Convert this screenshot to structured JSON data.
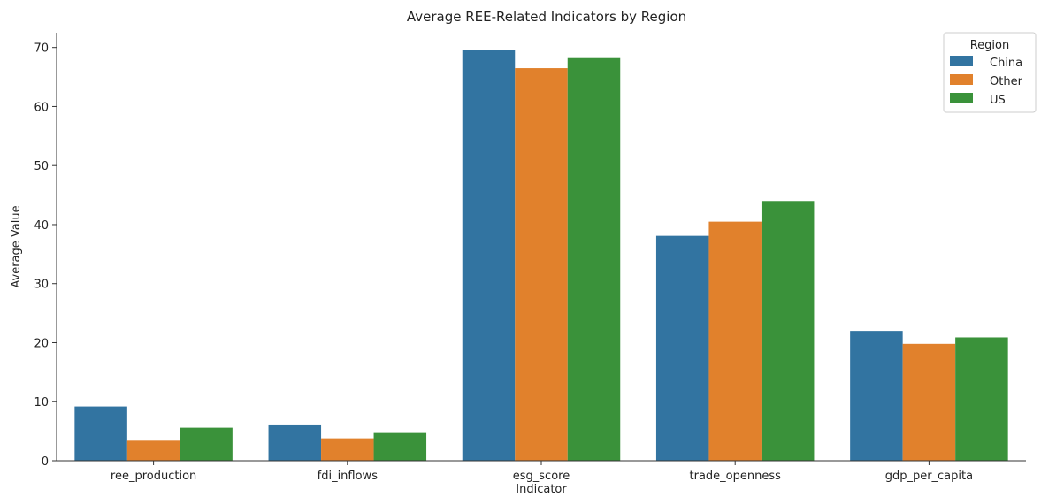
{
  "chart_data": {
    "type": "bar",
    "title": "Average REE-Related Indicators by Region",
    "xlabel": "Indicator",
    "ylabel": "Average Value",
    "categories": [
      "ree_production",
      "fdi_inflows",
      "esg_score",
      "trade_openness",
      "gdp_per_capita"
    ],
    "series": [
      {
        "name": "China",
        "color": "#3274a1",
        "values": [
          9.2,
          6.0,
          69.6,
          38.1,
          22.0
        ]
      },
      {
        "name": "Other",
        "color": "#e1812c",
        "values": [
          3.4,
          3.8,
          66.5,
          40.5,
          19.8
        ]
      },
      {
        "name": "US",
        "color": "#3a923a",
        "values": [
          5.6,
          4.7,
          68.2,
          44.0,
          20.9
        ]
      }
    ],
    "ylim": [
      0,
      72.5
    ],
    "yticks": [
      0,
      10,
      20,
      30,
      40,
      50,
      60,
      70
    ],
    "legend": {
      "title": "Region",
      "placement": "top-right"
    },
    "grid": false
  }
}
